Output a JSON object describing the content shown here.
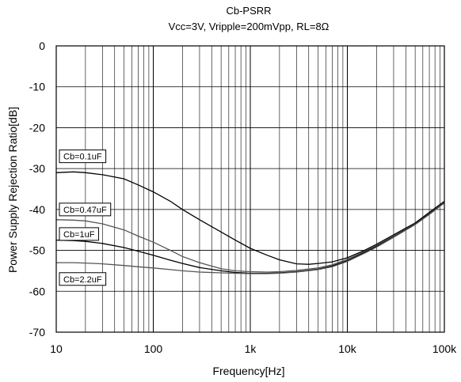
{
  "chart_data": {
    "type": "line",
    "title": "Cb-PSRR",
    "subtitle": "Vcc=3V, Vripple=200mVpp, RL=8Ω",
    "xlabel": "Frequency[Hz]",
    "ylabel": "Power Supply Rejection Ratio[dB]",
    "xscale": "log",
    "xlim": [
      10,
      100000
    ],
    "ylim": [
      -70,
      0
    ],
    "grid": true,
    "x_ticks": [
      {
        "value": 10,
        "label": "10"
      },
      {
        "value": 100,
        "label": "100"
      },
      {
        "value": 1000,
        "label": "1k"
      },
      {
        "value": 10000,
        "label": "10k"
      },
      {
        "value": 100000,
        "label": "100k"
      }
    ],
    "y_ticks": [
      0,
      -10,
      -20,
      -30,
      -40,
      -50,
      -60,
      -70
    ],
    "series": [
      {
        "name": "Cb=0.1uF",
        "label_y": -27,
        "color": "#000000",
        "points": [
          [
            10,
            -31
          ],
          [
            15,
            -30.8
          ],
          [
            20,
            -31
          ],
          [
            30,
            -31.5
          ],
          [
            50,
            -32.5
          ],
          [
            70,
            -34
          ],
          [
            100,
            -35.7
          ],
          [
            150,
            -38
          ],
          [
            200,
            -40
          ],
          [
            300,
            -42.5
          ],
          [
            500,
            -45.5
          ],
          [
            700,
            -47.5
          ],
          [
            1000,
            -49.5
          ],
          [
            1500,
            -51.2
          ],
          [
            2000,
            -52.3
          ],
          [
            3000,
            -53.3
          ],
          [
            4000,
            -53.4
          ],
          [
            5000,
            -53.2
          ],
          [
            7000,
            -52.8
          ],
          [
            10000,
            -51.8
          ],
          [
            15000,
            -50
          ],
          [
            20000,
            -48.5
          ],
          [
            30000,
            -46.2
          ],
          [
            50000,
            -43.3
          ],
          [
            70000,
            -40.7
          ],
          [
            100000,
            -38
          ]
        ]
      },
      {
        "name": "Cb=0.47uF",
        "label_y": -40,
        "color": "#555555",
        "points": [
          [
            10,
            -42.5
          ],
          [
            15,
            -42.6
          ],
          [
            20,
            -42.8
          ],
          [
            30,
            -43.5
          ],
          [
            50,
            -45
          ],
          [
            70,
            -46.5
          ],
          [
            100,
            -48
          ],
          [
            150,
            -50
          ],
          [
            200,
            -51.5
          ],
          [
            300,
            -53
          ],
          [
            500,
            -54.5
          ],
          [
            700,
            -55
          ],
          [
            1000,
            -55.2
          ],
          [
            1500,
            -55.3
          ],
          [
            2000,
            -55.2
          ],
          [
            3000,
            -54.9
          ],
          [
            5000,
            -54.3
          ],
          [
            7000,
            -53.5
          ],
          [
            10000,
            -52.2
          ],
          [
            15000,
            -50.3
          ],
          [
            20000,
            -48.8
          ],
          [
            30000,
            -46.5
          ],
          [
            50000,
            -43.5
          ],
          [
            70000,
            -41
          ],
          [
            100000,
            -38.2
          ]
        ]
      },
      {
        "name": "Cb=1uF",
        "label_y": -46,
        "color": "#000000",
        "points": [
          [
            10,
            -47.5
          ],
          [
            15,
            -47.6
          ],
          [
            20,
            -47.8
          ],
          [
            30,
            -48.3
          ],
          [
            50,
            -49.3
          ],
          [
            70,
            -50.2
          ],
          [
            100,
            -51.2
          ],
          [
            150,
            -52.4
          ],
          [
            200,
            -53.2
          ],
          [
            300,
            -54.2
          ],
          [
            500,
            -55
          ],
          [
            700,
            -55.4
          ],
          [
            1000,
            -55.6
          ],
          [
            1500,
            -55.6
          ],
          [
            2000,
            -55.5
          ],
          [
            3000,
            -55.2
          ],
          [
            5000,
            -54.6
          ],
          [
            7000,
            -53.8
          ],
          [
            10000,
            -52.5
          ],
          [
            15000,
            -50.5
          ],
          [
            20000,
            -49
          ],
          [
            30000,
            -46.7
          ],
          [
            50000,
            -43.6
          ],
          [
            70000,
            -41.1
          ],
          [
            100000,
            -38.3
          ]
        ]
      },
      {
        "name": "Cb=2.2uF",
        "label_y": -57,
        "color": "#555555",
        "points": [
          [
            10,
            -53
          ],
          [
            15,
            -53
          ],
          [
            20,
            -53.1
          ],
          [
            30,
            -53.3
          ],
          [
            50,
            -53.7
          ],
          [
            70,
            -54
          ],
          [
            100,
            -54.3
          ],
          [
            150,
            -54.7
          ],
          [
            200,
            -55
          ],
          [
            300,
            -55.3
          ],
          [
            500,
            -55.5
          ],
          [
            700,
            -55.6
          ],
          [
            1000,
            -55.7
          ],
          [
            1500,
            -55.7
          ],
          [
            2000,
            -55.6
          ],
          [
            3000,
            -55.3
          ],
          [
            5000,
            -54.7
          ],
          [
            7000,
            -54
          ],
          [
            10000,
            -52.7
          ],
          [
            15000,
            -50.7
          ],
          [
            20000,
            -49.2
          ],
          [
            30000,
            -46.8
          ],
          [
            50000,
            -43.7
          ],
          [
            70000,
            -41.2
          ],
          [
            100000,
            -38.4
          ]
        ]
      }
    ]
  }
}
